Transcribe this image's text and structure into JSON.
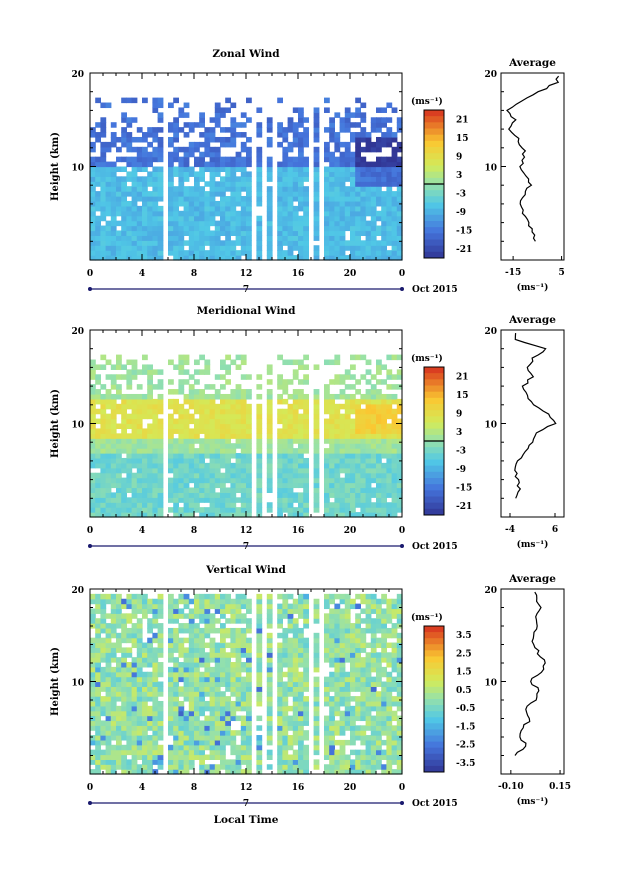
{
  "figure": {
    "common": {
      "ylabel": "Height (km)",
      "xticks": [
        "0",
        "4",
        "8",
        "12",
        "16",
        "20",
        "0"
      ],
      "yticks": [
        "20",
        "10"
      ],
      "date_marker": "7",
      "date_label": "Oct 2015",
      "units": "(ms⁻¹)",
      "avg_title": "Average",
      "avg_units": "(ms⁻¹)",
      "bottom_xlabel": "Local Time"
    }
  },
  "chart_data": [
    {
      "type": "heatmap",
      "title": "Zonal Wind",
      "ylabel": "Height (km)",
      "xlim": [
        0,
        24
      ],
      "ylim": [
        0,
        20
      ],
      "colorbar": {
        "ticks": [
          "21",
          "15",
          "9",
          "3",
          "-3",
          "-9",
          "-15",
          "-21"
        ],
        "range": [
          -24,
          24
        ],
        "zero_contour_level": 0
      },
      "colors": {
        "high": "#d7301f",
        "mid": "#b8e07a",
        "low": "#313695"
      },
      "average": {
        "title": "Average",
        "xlim": [
          -20,
          6
        ],
        "xticks": [
          "-15",
          "5"
        ],
        "xunits": "(ms⁻¹)",
        "height": [
          2,
          3,
          4,
          5,
          6,
          7,
          8,
          9,
          10,
          11,
          12,
          13,
          14,
          15,
          16,
          17,
          18,
          19
        ],
        "value": [
          -6,
          -7,
          -9,
          -11,
          -12,
          -10,
          -8,
          -9,
          -12,
          -10,
          -11,
          -13,
          -16,
          -14,
          -18,
          -11,
          -4,
          3
        ]
      }
    },
    {
      "type": "heatmap",
      "title": "Meridional Wind",
      "ylabel": "Height (km)",
      "xlim": [
        0,
        24
      ],
      "ylim": [
        0,
        20
      ],
      "colorbar": {
        "ticks": [
          "21",
          "15",
          "9",
          "3",
          "-3",
          "-9",
          "-15",
          "-21"
        ],
        "range": [
          -24,
          24
        ],
        "zero_contour_level": 0
      },
      "colors": {
        "high": "#d7301f",
        "mid": "#b8e07a",
        "low": "#313695"
      },
      "average": {
        "title": "Average",
        "xlim": [
          -6,
          8
        ],
        "xticks": [
          "-4",
          "6"
        ],
        "xunits": "(ms⁻¹)",
        "height": [
          2,
          3,
          4,
          5,
          6,
          7,
          8,
          9,
          10,
          11,
          12,
          13,
          14,
          15,
          16,
          17,
          18,
          19
        ],
        "value": [
          -3,
          -2,
          -2.5,
          -3,
          -2,
          -1,
          1,
          2,
          6,
          5,
          1,
          0,
          -1,
          1,
          0,
          1,
          4,
          -3
        ]
      }
    },
    {
      "type": "heatmap",
      "title": "Vertical Wind",
      "ylabel": "Height (km)",
      "xlabel": "Local Time",
      "xlim": [
        0,
        24
      ],
      "ylim": [
        0,
        20
      ],
      "colorbar": {
        "ticks": [
          "3.5",
          "2.5",
          "1.5",
          "0.5",
          "-0.5",
          "-1.5",
          "-2.5",
          "-3.5"
        ],
        "range": [
          -4,
          4
        ]
      },
      "colors": {
        "high": "#d7301f",
        "mid": "#b8e07a",
        "low": "#313695"
      },
      "average": {
        "title": "Average",
        "xlim": [
          -0.15,
          0.17
        ],
        "xticks": [
          "-0.10",
          "0.15"
        ],
        "xunits": "(ms⁻¹)",
        "height": [
          2,
          3,
          4,
          5,
          6,
          7,
          8,
          9,
          10,
          11,
          12,
          13,
          14,
          15,
          16,
          17,
          18,
          19
        ],
        "value": [
          -0.08,
          -0.02,
          -0.06,
          -0.04,
          0.0,
          -0.03,
          0.02,
          0.05,
          0.0,
          0.05,
          0.08,
          0.04,
          0.02,
          0.01,
          0.04,
          0.02,
          0.06,
          0.03
        ]
      }
    }
  ]
}
